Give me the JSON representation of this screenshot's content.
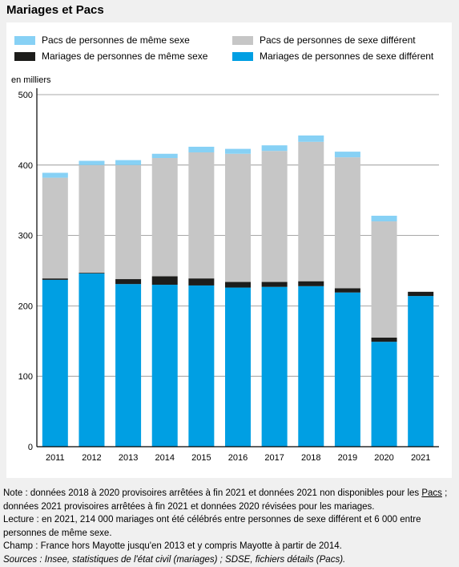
{
  "title": "Mariages et Pacs",
  "chart_data": {
    "type": "bar",
    "stacked": true,
    "unit_label": "en milliers",
    "categories": [
      "2011",
      "2012",
      "2013",
      "2014",
      "2015",
      "2016",
      "2017",
      "2018",
      "2019",
      "2020",
      "2021"
    ],
    "series": [
      {
        "name": "Mariages de personnes de sexe différent",
        "color": "#009fe3",
        "values": [
          237,
          246,
          231,
          230,
          229,
          226,
          227,
          228,
          219,
          149,
          214
        ]
      },
      {
        "name": "Mariages de personnes de même sexe",
        "color": "#1d1d1b",
        "values": [
          2,
          1,
          7,
          12,
          10,
          8,
          7,
          7,
          6,
          6,
          6
        ]
      },
      {
        "name": "Pacs de personnes de sexe différent",
        "color": "#c6c6c6",
        "values": [
          143,
          153,
          162,
          168,
          179,
          182,
          186,
          198,
          186,
          165,
          0
        ]
      },
      {
        "name": "Pacs de personnes de même sexe",
        "color": "#87d1f5",
        "values": [
          7,
          6,
          7,
          6,
          8,
          7,
          8,
          9,
          8,
          8,
          0
        ]
      }
    ],
    "yticks": [
      0,
      100,
      200,
      300,
      400,
      500
    ],
    "ylim": [
      0,
      500
    ],
    "grid": true,
    "legend_position": "top"
  },
  "notes": {
    "note_prefix": "Note : données 2018 à 2020 provisoires arrêtées à fin 2021 et données 2021 non disponibles pour les ",
    "note_link": "Pacs",
    "note_suffix": " ; données 2021 provisoires arrêtées à fin 2021 et données 2020 révisées pour les mariages.",
    "lecture": "Lecture : en 2021, 214 000 mariages ont été célébrés entre personnes de sexe différent et 6 000 entre personnes de même sexe.",
    "champ": "Champ : France hors Mayotte jusqu'en 2013 et y compris Mayotte à partir de 2014.",
    "sources": "Sources : Insee, statistiques de l'état civil (mariages) ; SDSE, fichiers détails (Pacs)."
  }
}
